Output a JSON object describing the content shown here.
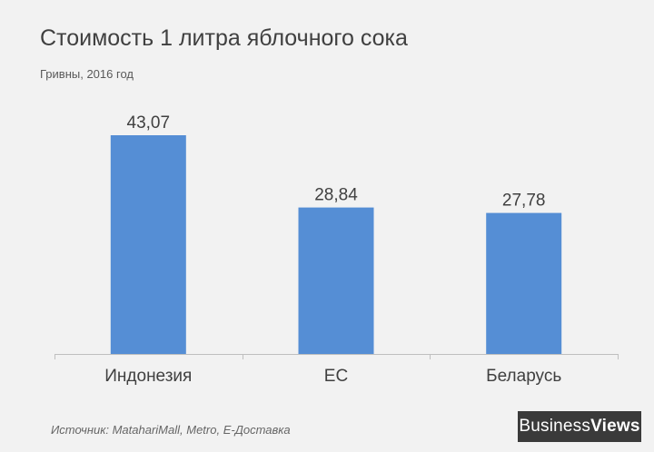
{
  "title": "Стоимость 1 литра яблочного сока",
  "subtitle": "Гривны, 2016 год",
  "source": "Источник: MatahariMall, Metro, E-Доставка",
  "logo": {
    "part1": "Business",
    "part2": "Views"
  },
  "colors": {
    "bar": "#558ed5",
    "axis": "#bfbfbf",
    "label": "#404040",
    "background": "#f2f2f2"
  },
  "chart_data": {
    "type": "bar",
    "categories": [
      "Индонезия",
      "ЕС",
      "Беларусь"
    ],
    "values": [
      43.07,
      28.84,
      27.78
    ],
    "value_labels": [
      "43,07",
      "28,84",
      "27,78"
    ],
    "title": "Стоимость 1 литра яблочного сока",
    "subtitle": "Гривны, 2016 год",
    "xlabel": "",
    "ylabel": "",
    "ylim": [
      0,
      43.07
    ],
    "grid": false,
    "legend": "none"
  }
}
